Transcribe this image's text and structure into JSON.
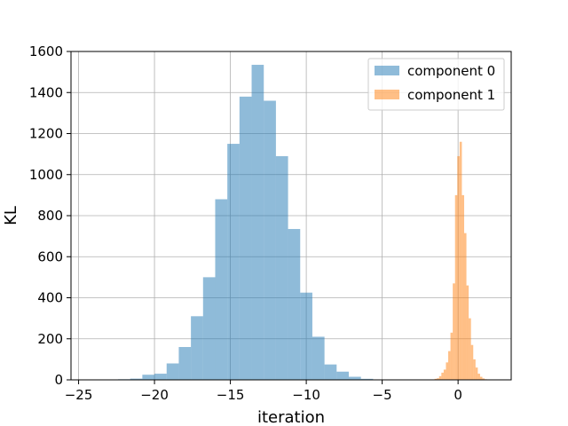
{
  "chart_data": {
    "type": "bar",
    "title": "",
    "xlabel": "iteration",
    "ylabel": "KL",
    "xlim": [
      -25.5,
      3.5
    ],
    "ylim": [
      0,
      1600
    ],
    "xticks": [
      -25,
      -20,
      -15,
      -10,
      -5,
      0
    ],
    "yticks": [
      0,
      200,
      400,
      600,
      800,
      1000,
      1200,
      1400,
      1600
    ],
    "grid": true,
    "legend_position": "top-right",
    "series": [
      {
        "name": "component 0",
        "color": "#1f77b4",
        "alpha": 0.5,
        "bin_width": 0.8,
        "bins": [
          {
            "x": -23.2,
            "height": 2
          },
          {
            "x": -22.4,
            "height": 3
          },
          {
            "x": -21.6,
            "height": 6
          },
          {
            "x": -20.8,
            "height": 25
          },
          {
            "x": -20.0,
            "height": 30
          },
          {
            "x": -19.2,
            "height": 80
          },
          {
            "x": -18.4,
            "height": 160
          },
          {
            "x": -17.6,
            "height": 310
          },
          {
            "x": -16.8,
            "height": 500
          },
          {
            "x": -16.0,
            "height": 880
          },
          {
            "x": -15.2,
            "height": 1150
          },
          {
            "x": -14.4,
            "height": 1380
          },
          {
            "x": -13.6,
            "height": 1535
          },
          {
            "x": -12.8,
            "height": 1360
          },
          {
            "x": -12.0,
            "height": 1090
          },
          {
            "x": -11.2,
            "height": 735
          },
          {
            "x": -10.4,
            "height": 425
          },
          {
            "x": -9.6,
            "height": 210
          },
          {
            "x": -8.8,
            "height": 75
          },
          {
            "x": -8.0,
            "height": 40
          },
          {
            "x": -7.2,
            "height": 15
          },
          {
            "x": -6.4,
            "height": 5
          }
        ]
      },
      {
        "name": "component 1",
        "color": "#ff7f0e",
        "alpha": 0.5,
        "bin_width": 0.15,
        "bins": [
          {
            "x": -1.7,
            "height": 2
          },
          {
            "x": -1.55,
            "height": 5
          },
          {
            "x": -1.4,
            "height": 8
          },
          {
            "x": -1.25,
            "height": 18
          },
          {
            "x": -1.1,
            "height": 35
          },
          {
            "x": -0.95,
            "height": 50
          },
          {
            "x": -0.8,
            "height": 85
          },
          {
            "x": -0.65,
            "height": 140
          },
          {
            "x": -0.5,
            "height": 230
          },
          {
            "x": -0.35,
            "height": 470
          },
          {
            "x": -0.2,
            "height": 900
          },
          {
            "x": -0.05,
            "height": 1090
          },
          {
            "x": 0.1,
            "height": 1160
          },
          {
            "x": 0.25,
            "height": 900
          },
          {
            "x": 0.4,
            "height": 715
          },
          {
            "x": 0.55,
            "height": 460
          },
          {
            "x": 0.7,
            "height": 300
          },
          {
            "x": 0.85,
            "height": 170
          },
          {
            "x": 1.0,
            "height": 100
          },
          {
            "x": 1.15,
            "height": 60
          },
          {
            "x": 1.3,
            "height": 30
          },
          {
            "x": 1.45,
            "height": 15
          },
          {
            "x": 1.6,
            "height": 7
          },
          {
            "x": 1.75,
            "height": 3
          }
        ]
      }
    ]
  }
}
